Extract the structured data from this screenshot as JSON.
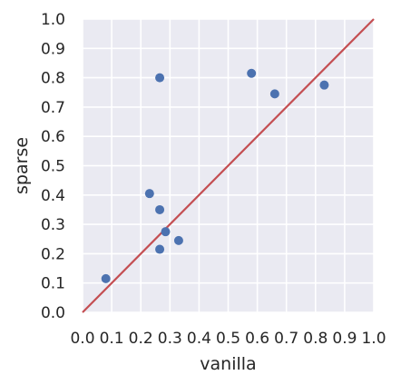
{
  "chart_data": {
    "type": "scatter",
    "title": "",
    "xlabel": "vanilla",
    "ylabel": "sparse",
    "xlim": [
      0.0,
      1.0
    ],
    "ylim": [
      0.0,
      1.0
    ],
    "xticks": [
      "0.0",
      "0.1",
      "0.2",
      "0.3",
      "0.4",
      "0.5",
      "0.6",
      "0.7",
      "0.8",
      "0.9",
      "1.0"
    ],
    "yticks": [
      "0.0",
      "0.1",
      "0.2",
      "0.3",
      "0.4",
      "0.5",
      "0.6",
      "0.7",
      "0.8",
      "0.9",
      "1.0"
    ],
    "grid": true,
    "series": [
      {
        "x": [
          0.08,
          0.23,
          0.265,
          0.265,
          0.285,
          0.33,
          0.265,
          0.58,
          0.66,
          0.83
        ],
        "y": [
          0.115,
          0.405,
          0.35,
          0.215,
          0.275,
          0.245,
          0.8,
          0.815,
          0.745,
          0.775
        ]
      }
    ],
    "reference_line": {
      "x": [
        0.0,
        1.0
      ],
      "y": [
        0.0,
        1.0
      ]
    },
    "colors": {
      "background": "#eaeaf2",
      "grid": "#ffffff",
      "point": "#4c72b0",
      "line": "#c44e52",
      "text": "#262626"
    }
  }
}
